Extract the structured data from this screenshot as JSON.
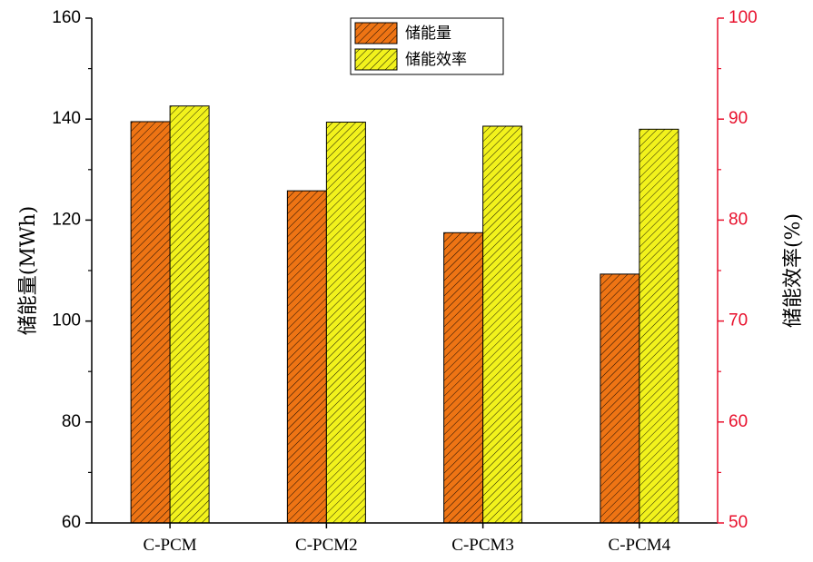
{
  "chart_data": {
    "type": "bar",
    "categories": [
      "C-PCM",
      "C-PCM2",
      "C-PCM3",
      "C-PCM4"
    ],
    "series": [
      {
        "name": "储能量",
        "axis": "left",
        "color": "#ee7414",
        "hatch": "diagonal",
        "values": [
          139.5,
          125.8,
          117.5,
          109.3
        ]
      },
      {
        "name": "储能效率",
        "axis": "right",
        "color": "#f2f21c",
        "hatch": "diagonal",
        "values": [
          91.3,
          89.7,
          89.3,
          89.0
        ]
      }
    ],
    "left_axis": {
      "label": "储能量(MWh)",
      "ylim": [
        60,
        160
      ],
      "ticks": [
        "60",
        "80",
        "100",
        "120",
        "140",
        "160"
      ],
      "color": "#000000"
    },
    "right_axis": {
      "label": "储能效率(%)",
      "ylim": [
        50,
        100
      ],
      "ticks": [
        "50",
        "60",
        "70",
        "80",
        "90",
        "100"
      ],
      "color": "#e8112d"
    },
    "title": "",
    "xlabel": "",
    "legend": {
      "placement": "top-center",
      "entries": [
        "储能量",
        "储能效率"
      ]
    },
    "grid": false
  }
}
